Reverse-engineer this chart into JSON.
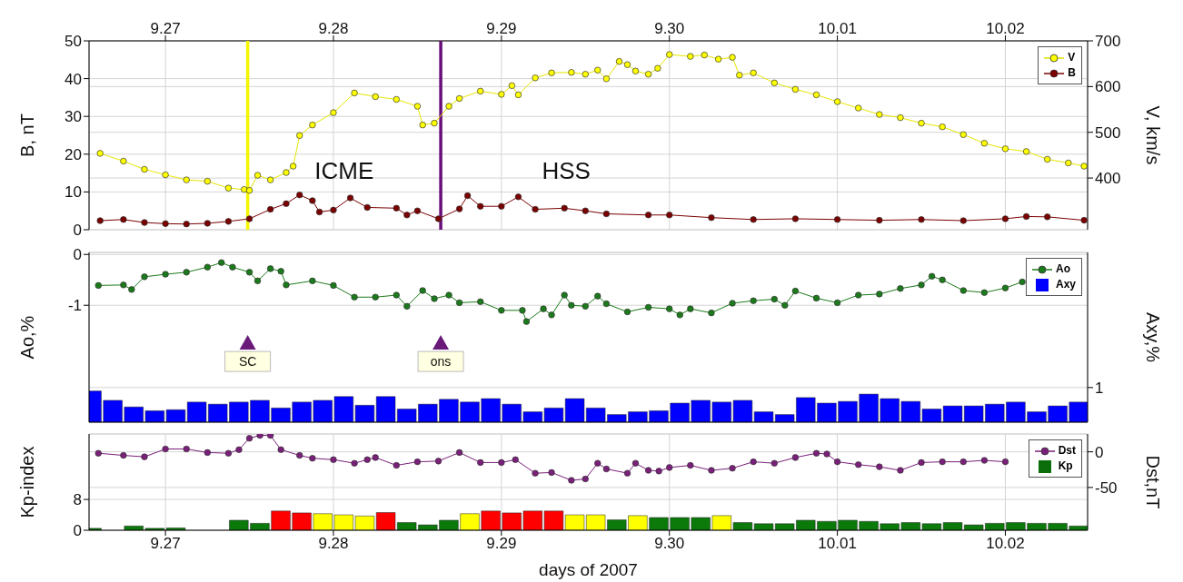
{
  "chart_data": [
    {
      "type": "line",
      "xlim": [
        "2007-09-26T13:05",
        "2007-10-02T11:45"
      ],
      "xticks": [
        {
          "value": "2007-09-27",
          "label": "9.27"
        },
        {
          "value": "2007-09-28",
          "label": "9.28"
        },
        {
          "value": "2007-09-29",
          "label": "9.29"
        },
        {
          "value": "2007-09-30",
          "label": "9.30"
        },
        {
          "value": "2007-10-01",
          "label": "10.01"
        },
        {
          "value": "2007-10-02",
          "label": "10.02"
        }
      ],
      "ylim": [
        0,
        50
      ],
      "yticks": [
        0,
        10,
        20,
        30,
        40,
        50
      ],
      "y2lim": [
        287,
        700
      ],
      "y2ticks": [
        400,
        500,
        600,
        700
      ],
      "ylabel": "B, nT",
      "y2label": "V, km/s",
      "grid": true,
      "legend": "top right",
      "marker": "circle",
      "ref_lines": [
        {
          "axis": "x",
          "value": "2007-09-27T11:45",
          "color": "#f5f500"
        },
        {
          "axis": "x",
          "value": "2007-09-28T15:20",
          "color": "#6a0f7a"
        }
      ],
      "annotations": [
        "ICME",
        "HSS"
      ],
      "series": [
        {
          "name": "V",
          "axis": "y2",
          "color": "#ffff00",
          "x": [
            "2007-09-26T14:40",
            "2007-09-26T18:00",
            "2007-09-26T21:00",
            "2007-09-27T00:00",
            "2007-09-27T03:00",
            "2007-09-27T06:00",
            "2007-09-27T09:00",
            "2007-09-27T11:15",
            "2007-09-27T12:00",
            "2007-09-27T13:10",
            "2007-09-27T15:00",
            "2007-09-27T17:15",
            "2007-09-27T18:15",
            "2007-09-27T19:10",
            "2007-09-27T21:00",
            "2007-09-28T00:00",
            "2007-09-28T03:00",
            "2007-09-28T06:00",
            "2007-09-28T09:00",
            "2007-09-28T12:00",
            "2007-09-28T12:45",
            "2007-09-28T14:25",
            "2007-09-28T16:30",
            "2007-09-28T18:00",
            "2007-09-28T21:00",
            "2007-09-29T00:00",
            "2007-09-29T01:30",
            "2007-09-29T02:25",
            "2007-09-29T04:50",
            "2007-09-29T07:10",
            "2007-09-29T10:00",
            "2007-09-29T12:00",
            "2007-09-29T13:45",
            "2007-09-29T15:00",
            "2007-09-29T16:50",
            "2007-09-29T18:00",
            "2007-09-29T19:10",
            "2007-09-29T21:00",
            "2007-09-29T22:20",
            "2007-09-30T00:00",
            "2007-09-30T03:00",
            "2007-09-30T05:00",
            "2007-09-30T07:00",
            "2007-09-30T09:00",
            "2007-09-30T10:00",
            "2007-09-30T12:00",
            "2007-09-30T15:00",
            "2007-09-30T18:00",
            "2007-09-30T21:00",
            "2007-10-01T00:00",
            "2007-10-01T03:00",
            "2007-10-01T06:00",
            "2007-10-01T09:00",
            "2007-10-01T12:00",
            "2007-10-01T15:00",
            "2007-10-01T18:00",
            "2007-10-01T21:00",
            "2007-10-02T00:00",
            "2007-10-02T03:00",
            "2007-10-02T06:00",
            "2007-10-02T09:00",
            "2007-10-02T11:15"
          ],
          "values": [
            454,
            437,
            419,
            407,
            396,
            393,
            378,
            375,
            373,
            406,
            396,
            412,
            426,
            493,
            516,
            543,
            586,
            578,
            572,
            557,
            516,
            520,
            557,
            574,
            590,
            583,
            602,
            582,
            619,
            630,
            631,
            627,
            636,
            617,
            655,
            648,
            634,
            627,
            640,
            670,
            666,
            669,
            660,
            664,
            625,
            630,
            608,
            594,
            582,
            567,
            553,
            539,
            532,
            520,
            512,
            495,
            476,
            464,
            458,
            441,
            433,
            426
          ]
        },
        {
          "name": "B",
          "color": "#7b0000",
          "x": [
            "2007-09-26T14:40",
            "2007-09-26T18:00",
            "2007-09-26T21:00",
            "2007-09-27T00:00",
            "2007-09-27T03:00",
            "2007-09-27T06:00",
            "2007-09-27T09:00",
            "2007-09-27T12:00",
            "2007-09-27T15:00",
            "2007-09-27T17:15",
            "2007-09-27T19:10",
            "2007-09-27T21:00",
            "2007-09-27T22:00",
            "2007-09-28T00:00",
            "2007-09-28T02:25",
            "2007-09-28T04:50",
            "2007-09-28T09:00",
            "2007-09-28T10:30",
            "2007-09-28T12:00",
            "2007-09-28T15:00",
            "2007-09-28T18:00",
            "2007-09-28T19:10",
            "2007-09-28T21:00",
            "2007-09-29T00:00",
            "2007-09-29T02:25",
            "2007-09-29T04:50",
            "2007-09-29T09:00",
            "2007-09-29T12:00",
            "2007-09-29T15:00",
            "2007-09-29T21:00",
            "2007-09-30T00:00",
            "2007-09-30T06:00",
            "2007-09-30T12:00",
            "2007-09-30T18:00",
            "2007-10-01T00:00",
            "2007-10-01T06:00",
            "2007-10-01T12:00",
            "2007-10-01T18:00",
            "2007-10-02T00:00",
            "2007-10-02T03:00",
            "2007-10-02T06:00",
            "2007-10-02T11:15"
          ],
          "values": [
            2.4,
            2.7,
            1.9,
            1.6,
            1.5,
            1.7,
            2.2,
            2.9,
            5.4,
            6.9,
            9.2,
            7.7,
            4.7,
            5.2,
            8.4,
            5.9,
            5.7,
            3.9,
            5.0,
            2.9,
            5.5,
            9.0,
            6.2,
            6.2,
            8.7,
            5.4,
            5.7,
            5.0,
            4.2,
            3.9,
            3.9,
            3.2,
            2.7,
            2.9,
            2.7,
            2.5,
            2.7,
            2.4,
            2.9,
            3.5,
            3.4,
            2.5
          ]
        }
      ]
    },
    {
      "type": "line",
      "xlim": [
        "2007-09-26T13:05",
        "2007-10-02T11:45"
      ],
      "xticks": [
        "2007-09-27",
        "2007-09-28",
        "2007-09-29",
        "2007-09-30",
        "2007-10-01",
        "2007-10-02"
      ],
      "tick_labels": "y",
      "ylim": [
        -3.3,
        0.04
      ],
      "yticks": [
        0,
        -1
      ],
      "y2lim": [
        0,
        4.9
      ],
      "y2ticks": [
        1
      ],
      "ylabel": "Ao,%",
      "y2label": "Axy,%",
      "grid": true,
      "legend": "top right",
      "marker": "circle",
      "annotations": [
        {
          "text": "SC",
          "x": "2007-09-27T11:45",
          "y": -1.73
        },
        {
          "text": "ons",
          "x": "2007-09-28T15:20",
          "y": -1.73
        }
      ],
      "series": [
        {
          "name": "Ao",
          "color": "#1b7a1b",
          "x": [
            "2007-09-26T14:25",
            "2007-09-26T18:00",
            "2007-09-26T19:10",
            "2007-09-26T21:00",
            "2007-09-27T00:00",
            "2007-09-27T03:00",
            "2007-09-27T06:00",
            "2007-09-27T08:00",
            "2007-09-27T09:35",
            "2007-09-27T12:00",
            "2007-09-27T13:10",
            "2007-09-27T15:00",
            "2007-09-27T16:30",
            "2007-09-27T17:15",
            "2007-09-27T21:00",
            "2007-09-28T00:00",
            "2007-09-28T03:00",
            "2007-09-28T06:00",
            "2007-09-28T09:00",
            "2007-09-28T10:30",
            "2007-09-28T12:45",
            "2007-09-28T14:25",
            "2007-09-28T16:30",
            "2007-09-28T18:00",
            "2007-09-28T21:00",
            "2007-09-29T00:00",
            "2007-09-29T03:00",
            "2007-09-29T03:35",
            "2007-09-29T06:00",
            "2007-09-29T07:10",
            "2007-09-29T09:00",
            "2007-09-29T10:00",
            "2007-09-29T12:00",
            "2007-09-29T13:45",
            "2007-09-29T15:00",
            "2007-09-29T18:00",
            "2007-09-29T21:00",
            "2007-09-30T00:00",
            "2007-09-30T01:30",
            "2007-09-30T03:00",
            "2007-09-30T06:00",
            "2007-09-30T09:00",
            "2007-09-30T12:00",
            "2007-09-30T15:00",
            "2007-09-30T16:30",
            "2007-09-30T18:00",
            "2007-09-30T21:00",
            "2007-10-01T00:00",
            "2007-10-01T03:00",
            "2007-10-01T06:00",
            "2007-10-01T09:00",
            "2007-10-01T12:00",
            "2007-10-01T13:30",
            "2007-10-01T15:00",
            "2007-10-01T18:00",
            "2007-10-01T21:00",
            "2007-10-02T00:00",
            "2007-10-02T02:25"
          ],
          "values": [
            -0.61,
            -0.6,
            -0.69,
            -0.44,
            -0.39,
            -0.35,
            -0.25,
            -0.16,
            -0.25,
            -0.35,
            -0.52,
            -0.28,
            -0.33,
            -0.6,
            -0.52,
            -0.61,
            -0.84,
            -0.84,
            -0.8,
            -1.02,
            -0.71,
            -0.87,
            -0.8,
            -0.95,
            -0.93,
            -1.1,
            -1.1,
            -1.32,
            -1.07,
            -1.19,
            -0.8,
            -1.0,
            -1.02,
            -0.82,
            -0.97,
            -1.13,
            -1.04,
            -1.07,
            -1.19,
            -1.07,
            -1.15,
            -0.96,
            -0.91,
            -0.88,
            -1.0,
            -0.72,
            -0.86,
            -0.95,
            -0.8,
            -0.78,
            -0.67,
            -0.6,
            -0.43,
            -0.5,
            -0.71,
            -0.75,
            -0.66,
            -0.54
          ]
        },
        {
          "name": "Axy",
          "type": "bar",
          "axis": "y2",
          "color": "#0000ff",
          "x": [
            "2007-09-26T13:30",
            "2007-09-26T16:30",
            "2007-09-26T19:30",
            "2007-09-26T22:30",
            "2007-09-27T01:30",
            "2007-09-27T04:30",
            "2007-09-27T07:30",
            "2007-09-27T10:30",
            "2007-09-27T13:30",
            "2007-09-27T16:30",
            "2007-09-27T19:30",
            "2007-09-27T22:30",
            "2007-09-28T01:30",
            "2007-09-28T04:30",
            "2007-09-28T07:30",
            "2007-09-28T10:30",
            "2007-09-28T13:30",
            "2007-09-28T16:30",
            "2007-09-28T19:30",
            "2007-09-28T22:30",
            "2007-09-29T01:30",
            "2007-09-29T04:30",
            "2007-09-29T07:30",
            "2007-09-29T10:30",
            "2007-09-29T13:30",
            "2007-09-29T16:30",
            "2007-09-29T19:30",
            "2007-09-29T22:30",
            "2007-09-30T01:30",
            "2007-09-30T04:30",
            "2007-09-30T07:30",
            "2007-09-30T10:30",
            "2007-09-30T13:30",
            "2007-09-30T16:30",
            "2007-09-30T19:30",
            "2007-09-30T22:30",
            "2007-10-01T01:30",
            "2007-10-01T04:30",
            "2007-10-01T07:30",
            "2007-10-01T10:30",
            "2007-10-01T13:30",
            "2007-10-01T16:30",
            "2007-10-01T19:30",
            "2007-10-01T22:30",
            "2007-10-02T01:30",
            "2007-10-02T04:30",
            "2007-10-02T07:30",
            "2007-10-02T10:30"
          ],
          "values": [
            0.9,
            0.63,
            0.44,
            0.33,
            0.36,
            0.58,
            0.52,
            0.58,
            0.63,
            0.41,
            0.58,
            0.63,
            0.74,
            0.49,
            0.74,
            0.38,
            0.52,
            0.66,
            0.58,
            0.68,
            0.52,
            0.3,
            0.41,
            0.68,
            0.41,
            0.22,
            0.3,
            0.33,
            0.55,
            0.63,
            0.58,
            0.63,
            0.3,
            0.22,
            0.71,
            0.55,
            0.6,
            0.81,
            0.68,
            0.6,
            0.38,
            0.47,
            0.47,
            0.52,
            0.58,
            0.3,
            0.47,
            0.58
          ]
        }
      ]
    },
    {
      "type": "line",
      "xlim": [
        "2007-09-26T13:05",
        "2007-10-02T11:45"
      ],
      "xticks": [
        {
          "value": "2007-09-27",
          "label": "9.27"
        },
        {
          "value": "2007-09-28",
          "label": "9.28"
        },
        {
          "value": "2007-09-29",
          "label": "9.29"
        },
        {
          "value": "2007-09-30",
          "label": "9.30"
        },
        {
          "value": "2007-10-01",
          "label": "10.01"
        },
        {
          "value": "2007-10-02",
          "label": "10.02"
        }
      ],
      "xlabel": "days of 2007",
      "ylim": [
        0,
        25
      ],
      "yticks": [
        0,
        8
      ],
      "y2lim": [
        -110,
        25
      ],
      "y2ticks": [
        0,
        -50
      ],
      "ylabel": "Kp-index",
      "y2label": "Dst,nT",
      "grid": true,
      "legend": "top right",
      "marker": "circle",
      "series": [
        {
          "name": "Dst",
          "axis": "y2",
          "color": "#7a1f7a",
          "x": [
            "2007-09-26T14:25",
            "2007-09-26T18:00",
            "2007-09-26T21:00",
            "2007-09-27T00:00",
            "2007-09-27T03:00",
            "2007-09-27T06:00",
            "2007-09-27T09:00",
            "2007-09-27T10:30",
            "2007-09-27T12:00",
            "2007-09-27T13:30",
            "2007-09-27T15:00",
            "2007-09-27T16:30",
            "2007-09-27T19:10",
            "2007-09-27T21:00",
            "2007-09-28T00:00",
            "2007-09-28T03:00",
            "2007-09-28T04:50",
            "2007-09-28T06:00",
            "2007-09-28T09:00",
            "2007-09-28T12:00",
            "2007-09-28T15:00",
            "2007-09-28T18:00",
            "2007-09-28T21:00",
            "2007-09-29T00:00",
            "2007-09-29T02:00",
            "2007-09-29T04:50",
            "2007-09-29T07:10",
            "2007-09-29T10:00",
            "2007-09-29T12:00",
            "2007-09-29T13:45",
            "2007-09-29T15:00",
            "2007-09-29T18:00",
            "2007-09-29T19:10",
            "2007-09-29T21:00",
            "2007-09-29T22:30",
            "2007-09-30T00:00",
            "2007-09-30T03:00",
            "2007-09-30T06:00",
            "2007-09-30T09:00",
            "2007-09-30T12:00",
            "2007-09-30T15:00",
            "2007-09-30T18:00",
            "2007-09-30T21:00",
            "2007-09-30T22:30",
            "2007-10-01T00:00",
            "2007-10-01T03:00",
            "2007-10-01T06:00",
            "2007-10-01T09:00",
            "2007-10-01T12:00",
            "2007-10-01T15:00",
            "2007-10-01T18:00",
            "2007-10-01T21:00",
            "2007-10-02T00:00"
          ],
          "values": [
            -2,
            -5,
            -7,
            4,
            4,
            -1,
            -2,
            3,
            19,
            23,
            23,
            3,
            -5,
            -9,
            -11,
            -16,
            -11,
            -8,
            -19,
            -14,
            -13,
            -1,
            -15,
            -15,
            -11,
            -30,
            -29,
            -40,
            -38,
            -16,
            -24,
            -30,
            -16,
            -26,
            -27,
            -22,
            -19,
            -26,
            -23,
            -14,
            -16,
            -8,
            -2,
            -3,
            -14,
            -18,
            -21,
            -26,
            -15,
            -14,
            -14,
            -12,
            -14
          ]
        },
        {
          "name": "Kp",
          "type": "bar",
          "color": "#0b6e0b",
          "x": [
            "2007-09-26T13:30",
            "2007-09-26T16:30",
            "2007-09-26T19:30",
            "2007-09-26T22:30",
            "2007-09-27T01:30",
            "2007-09-27T04:30",
            "2007-09-27T07:30",
            "2007-09-27T10:30",
            "2007-09-27T13:30",
            "2007-09-27T16:30",
            "2007-09-27T19:30",
            "2007-09-27T22:30",
            "2007-09-28T01:30",
            "2007-09-28T04:30",
            "2007-09-28T07:30",
            "2007-09-28T10:30",
            "2007-09-28T13:30",
            "2007-09-28T16:30",
            "2007-09-28T19:30",
            "2007-09-28T22:30",
            "2007-09-29T01:30",
            "2007-09-29T04:30",
            "2007-09-29T07:30",
            "2007-09-29T10:30",
            "2007-09-29T13:30",
            "2007-09-29T16:30",
            "2007-09-29T19:30",
            "2007-09-29T22:30",
            "2007-09-30T01:30",
            "2007-09-30T04:30",
            "2007-09-30T07:30",
            "2007-09-30T10:30",
            "2007-09-30T13:30",
            "2007-09-30T16:30",
            "2007-09-30T19:30",
            "2007-09-30T22:30",
            "2007-10-01T01:30",
            "2007-10-01T04:30",
            "2007-10-01T07:30",
            "2007-10-01T10:30",
            "2007-10-01T13:30",
            "2007-10-01T16:30",
            "2007-10-01T19:30",
            "2007-10-01T22:30",
            "2007-10-02T01:30",
            "2007-10-02T04:30",
            "2007-10-02T07:30",
            "2007-10-02T10:30"
          ],
          "values": [
            0.5,
            0,
            1.1,
            0.5,
            0.6,
            0,
            0,
            2.6,
            1.8,
            5.0,
            4.5,
            4.3,
            4.0,
            3.7,
            4.6,
            2.0,
            1.4,
            2.6,
            4.3,
            5.0,
            4.5,
            5.0,
            5.0,
            4.0,
            4.0,
            2.7,
            3.8,
            3.3,
            3.3,
            3.3,
            3.8,
            2.0,
            1.7,
            1.7,
            2.6,
            2.3,
            2.6,
            2.3,
            1.7,
            2.0,
            1.7,
            2.0,
            1.4,
            1.8,
            2.0,
            1.8,
            1.8,
            1.1
          ],
          "colors": [
            "#0b7a0b",
            "#0b7a0b",
            "#0b7a0b",
            "#0b7a0b",
            "#0b7a0b",
            "#0b7a0b",
            "#0b7a0b",
            "#0b7a0b",
            "#0b7a0b",
            "#ff0000",
            "#ff0000",
            "#ffff00",
            "#ffff00",
            "#ffff00",
            "#ff0000",
            "#0b7a0b",
            "#0b7a0b",
            "#0b7a0b",
            "#ffff00",
            "#ff0000",
            "#ff0000",
            "#ff0000",
            "#ff0000",
            "#ffff00",
            "#ffff00",
            "#0b7a0b",
            "#ffff00",
            "#0b7a0b",
            "#0b7a0b",
            "#0b7a0b",
            "#ffff00",
            "#0b7a0b",
            "#0b7a0b",
            "#0b7a0b",
            "#0b7a0b",
            "#0b7a0b",
            "#0b7a0b",
            "#0b7a0b",
            "#0b7a0b",
            "#0b7a0b",
            "#0b7a0b",
            "#0b7a0b",
            "#0b7a0b",
            "#0b7a0b",
            "#0b7a0b",
            "#0b7a0b",
            "#0b7a0b",
            "#0b7a0b"
          ]
        }
      ]
    }
  ]
}
